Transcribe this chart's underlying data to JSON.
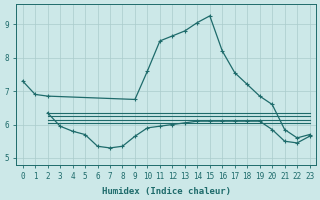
{
  "xlabel": "Humidex (Indice chaleur)",
  "background_color": "#cce8e8",
  "grid_color": "#aacccc",
  "line_color": "#1e6b6b",
  "xlim": [
    -0.5,
    23.5
  ],
  "ylim": [
    4.8,
    9.6
  ],
  "yticks": [
    5,
    6,
    7,
    8,
    9
  ],
  "xticks": [
    0,
    1,
    2,
    3,
    4,
    5,
    6,
    7,
    8,
    9,
    10,
    11,
    12,
    13,
    14,
    15,
    16,
    17,
    18,
    19,
    20,
    21,
    22,
    23
  ],
  "curve_main_x": [
    0,
    1,
    2,
    9,
    10,
    11,
    12,
    13,
    14,
    15,
    16,
    17,
    18,
    19,
    20,
    21,
    22,
    23
  ],
  "curve_main_y": [
    7.3,
    6.9,
    6.85,
    6.75,
    7.6,
    8.5,
    8.65,
    8.8,
    9.05,
    9.25,
    8.2,
    7.55,
    7.2,
    6.85,
    6.6,
    5.85,
    5.6,
    5.7
  ],
  "curve_low_x": [
    2,
    3,
    4,
    5,
    6,
    7,
    8,
    9,
    10,
    11,
    12,
    13,
    14,
    15,
    16,
    17,
    18,
    19,
    20,
    21,
    22,
    23
  ],
  "curve_low_y": [
    6.35,
    5.95,
    5.8,
    5.7,
    5.35,
    5.3,
    5.35,
    5.65,
    5.9,
    5.95,
    6.0,
    6.05,
    6.1,
    6.1,
    6.1,
    6.1,
    6.1,
    6.1,
    5.85,
    5.5,
    5.45,
    5.65
  ],
  "hline1_x": [
    2,
    9,
    10,
    23
  ],
  "hline1_y": [
    6.35,
    6.35,
    6.35,
    6.35
  ],
  "hline2_x": [
    2,
    9,
    10,
    23
  ],
  "hline2_y": [
    6.25,
    6.25,
    6.25,
    6.25
  ],
  "hline3_x": [
    2,
    9,
    10,
    23
  ],
  "hline3_y": [
    6.15,
    6.15,
    6.15,
    6.15
  ],
  "hline4_x": [
    2,
    9,
    10,
    23
  ],
  "hline4_y": [
    6.05,
    6.05,
    6.05,
    6.05
  ]
}
